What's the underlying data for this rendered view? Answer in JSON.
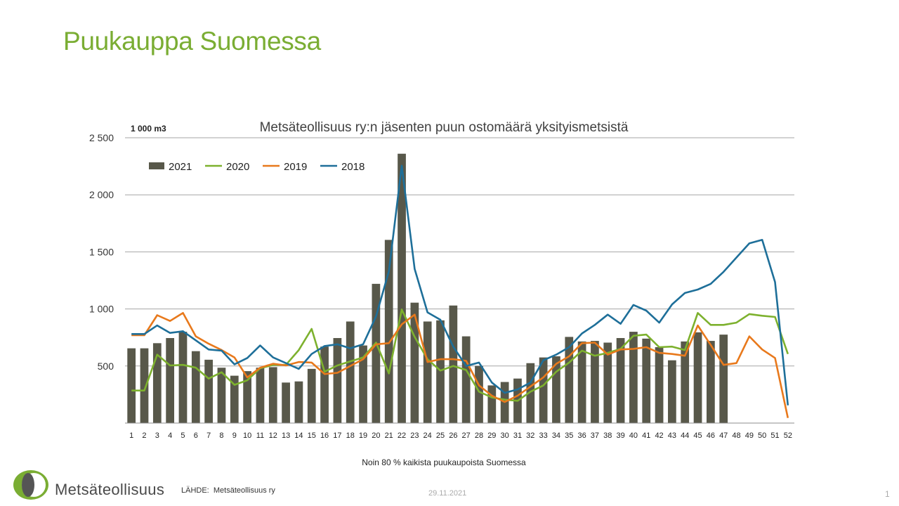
{
  "slide": {
    "title": "Puukauppa Suomessa",
    "logo_text": "Metsäteollisuus",
    "source_label": "LÄHDE:",
    "source_value": "Metsäteollisuus ry",
    "date": "29.11.2021",
    "page_number": "1"
  },
  "chart_data": {
    "type": "bar",
    "title": "Metsäteollisuus ry:n jäsenten puun ostomäärä yksityismetsistä",
    "unit_label": "1 000 m3",
    "xlabel": "Noin 80 % kaikista puukaupoista Suomessa",
    "ylim": [
      0,
      2500
    ],
    "yticks": [
      500,
      1000,
      1500,
      2000,
      2500
    ],
    "ytick_labels": [
      "500",
      "1 000",
      "1 500",
      "2 000",
      "2 500"
    ],
    "grid": true,
    "legend_placement": "top-left",
    "categories": [
      "1",
      "2",
      "3",
      "4",
      "5",
      "6",
      "7",
      "8",
      "9",
      "10",
      "11",
      "12",
      "13",
      "14",
      "15",
      "16",
      "17",
      "18",
      "19",
      "20",
      "21",
      "22",
      "23",
      "24",
      "25",
      "26",
      "27",
      "28",
      "29",
      "30",
      "31",
      "32",
      "33",
      "34",
      "35",
      "36",
      "37",
      "38",
      "39",
      "40",
      "41",
      "42",
      "43",
      "44",
      "45",
      "46",
      "47",
      "48",
      "49",
      "50",
      "51",
      "52"
    ],
    "bar_series": {
      "name": "2021",
      "color": "#58584a",
      "values": [
        655,
        655,
        700,
        745,
        800,
        630,
        555,
        485,
        415,
        455,
        485,
        490,
        355,
        365,
        475,
        670,
        745,
        890,
        680,
        1220,
        1605,
        2360,
        1055,
        890,
        900,
        1030,
        760,
        500,
        330,
        360,
        390,
        525,
        575,
        585,
        755,
        715,
        720,
        705,
        745,
        800,
        740,
        665,
        550,
        715,
        795,
        720,
        775,
        null,
        null,
        null,
        null,
        null
      ]
    },
    "line_series": [
      {
        "name": "2020",
        "color": "#7db12e",
        "values": [
          285,
          285,
          600,
          505,
          510,
          485,
          390,
          445,
          335,
          375,
          480,
          510,
          510,
          640,
          825,
          450,
          505,
          540,
          575,
          705,
          435,
          995,
          755,
          560,
          460,
          500,
          465,
          275,
          225,
          205,
          195,
          275,
          330,
          450,
          530,
          635,
          590,
          615,
          650,
          765,
          775,
          665,
          670,
          640,
          965,
          860,
          860,
          880,
          955,
          940,
          930,
          605
        ]
      },
      {
        "name": "2019",
        "color": "#e8791c",
        "values": [
          770,
          770,
          945,
          895,
          965,
          760,
          695,
          640,
          575,
          400,
          485,
          520,
          505,
          535,
          530,
          430,
          440,
          500,
          560,
          690,
          700,
          865,
          950,
          535,
          560,
          560,
          545,
          330,
          240,
          185,
          240,
          320,
          400,
          520,
          585,
          700,
          705,
          600,
          645,
          650,
          665,
          615,
          605,
          590,
          855,
          685,
          510,
          525,
          760,
          645,
          570,
          45
        ]
      },
      {
        "name": "2018",
        "color": "#1e6f99",
        "values": [
          780,
          780,
          855,
          790,
          805,
          725,
          645,
          635,
          515,
          570,
          680,
          575,
          525,
          475,
          605,
          675,
          690,
          655,
          690,
          935,
          1330,
          2255,
          1350,
          970,
          905,
          670,
          500,
          530,
          355,
          265,
          295,
          355,
          550,
          600,
          665,
          785,
          860,
          950,
          870,
          1035,
          985,
          880,
          1040,
          1140,
          1170,
          1220,
          1325,
          1450,
          1575,
          1605,
          1235,
          155
        ]
      }
    ]
  }
}
